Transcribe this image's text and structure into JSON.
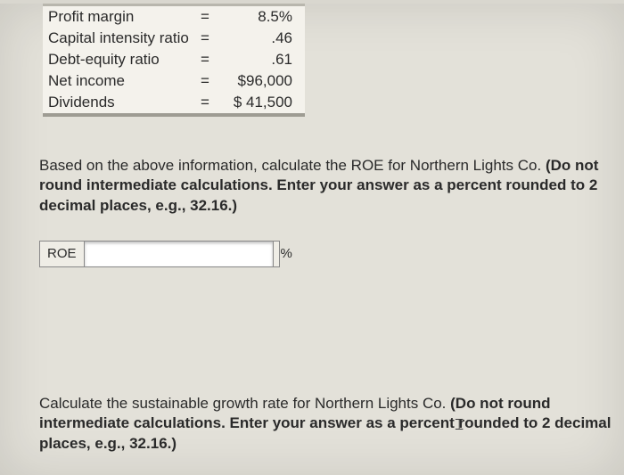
{
  "table": {
    "rows": [
      {
        "label": "Profit margin",
        "eq": "=",
        "value": "8.5%"
      },
      {
        "label": "Capital intensity ratio",
        "eq": "=",
        "value": ".46"
      },
      {
        "label": "Debt-equity ratio",
        "eq": "=",
        "value": ".61"
      },
      {
        "label": "Net income",
        "eq": "=",
        "value": "$96,000"
      },
      {
        "label": "Dividends",
        "eq": "=",
        "value": "$ 41,500"
      }
    ]
  },
  "q1": {
    "lead": "Based on the above information, calculate the ROE for Northern Lights Co. ",
    "bold": "(Do not round intermediate calculations. Enter your answer as a percent rounded to 2 decimal places, e.g., 32.16.)"
  },
  "roe": {
    "label": "ROE",
    "unit": "%"
  },
  "q2": {
    "lead": "Calculate the sustainable growth rate for Northern Lights Co. ",
    "bold": "(Do not round intermediate calculations. Enter your answer as a percent rounded to 2 decimal places, e.g., 32.16.)"
  }
}
